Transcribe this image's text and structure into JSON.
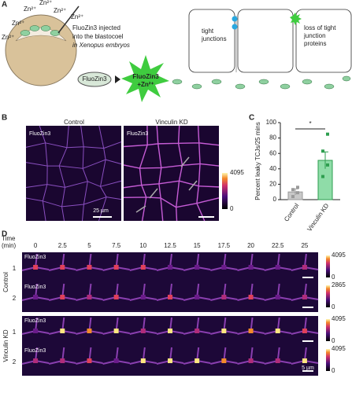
{
  "panel_labels": [
    "A",
    "B",
    "C",
    "D"
  ],
  "panel_a": {
    "zn_labels": [
      "Zn²⁺",
      "Zn²⁺",
      "Zn²⁺",
      "Zn²⁺",
      "Zn²⁺",
      "Zn²⁺"
    ],
    "injection_text": [
      "FluoZin3 injected",
      "into the blastocoel",
      "in Xenopus embryos"
    ],
    "dye": "FluoZin3",
    "dye_bound": [
      "FluoZin3",
      "+Zn²⁺"
    ],
    "tight_junctions": [
      "tight",
      "junctions"
    ],
    "loss": [
      "loss of tight",
      "junction",
      "proteins"
    ]
  },
  "panel_b": {
    "titles": [
      "Control",
      "Vinculin KD"
    ],
    "channel": "FluoZin3",
    "scale_bar": "25 µm",
    "colorbar": [
      "4095",
      "0"
    ]
  },
  "chart_data": {
    "type": "bar",
    "ylabel": "Percent leaky TCJs/25 mins",
    "categories": [
      "Control",
      "Vinculin KD"
    ],
    "values": [
      10,
      51
    ],
    "errors": [
      4,
      11
    ],
    "points": [
      [
        4,
        9,
        13,
        16
      ],
      [
        30,
        45,
        63,
        85
      ]
    ],
    "colors": [
      "#c8c8c8",
      "#8fdca8"
    ],
    "edge_colors": [
      "#9a9a9a",
      "#2e9e4f"
    ],
    "ylim": [
      0,
      100
    ],
    "yticks": [
      0,
      20,
      40,
      60,
      80,
      100
    ],
    "annotation": "*"
  },
  "panel_d": {
    "time_label": [
      "Time",
      "(min)"
    ],
    "times": [
      0,
      2.5,
      5,
      7.5,
      10,
      12.5,
      15,
      17.5,
      20,
      22.5,
      25
    ],
    "groups": [
      "Control",
      "Vinculin KD"
    ],
    "rows": [
      "1",
      "2"
    ],
    "channel": "FluoZin3",
    "colorbars": [
      [
        "4095",
        "0"
      ],
      [
        "2865",
        "0"
      ],
      [
        "4095",
        "0"
      ],
      [
        "4095",
        "0"
      ]
    ],
    "scale_bar": "5 µm"
  }
}
